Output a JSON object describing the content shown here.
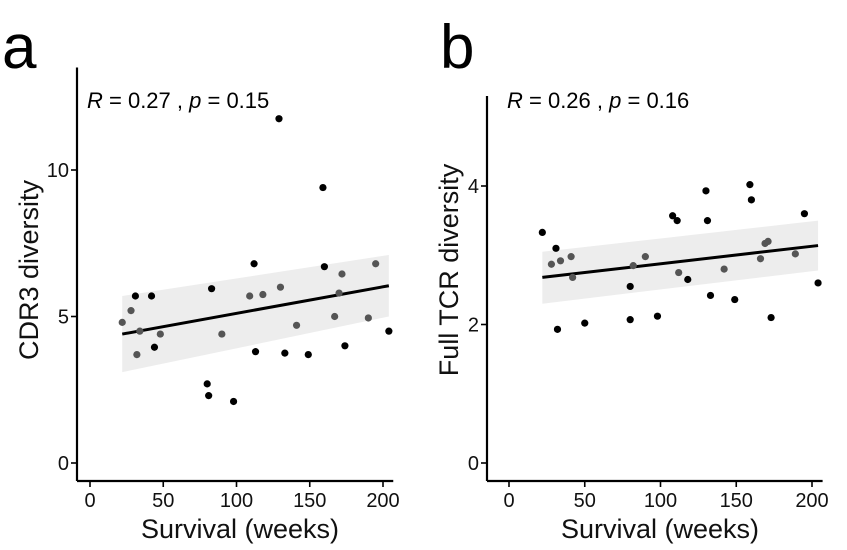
{
  "chart_data": [
    {
      "panel": "a",
      "type": "scatter",
      "stat_text": {
        "r_symbol": "R",
        "r_value": " = 0.27 , ",
        "p_symbol": "p",
        "p_value": " = 0.15"
      },
      "xlabel": "Survival (weeks)",
      "ylabel": "CDR3 diversity",
      "xlim": [
        -8,
        207
      ],
      "ylim": [
        -0.5,
        13.5
      ],
      "xticks": [
        0,
        50,
        100,
        150,
        200
      ],
      "yticks": [
        0,
        5,
        10
      ],
      "grid": false,
      "points": [
        {
          "x": 22,
          "y": 4.8,
          "shade": "light"
        },
        {
          "x": 28,
          "y": 5.2,
          "shade": "light"
        },
        {
          "x": 31,
          "y": 5.7,
          "shade": "dark"
        },
        {
          "x": 32,
          "y": 3.7,
          "shade": "light"
        },
        {
          "x": 34,
          "y": 4.5,
          "shade": "light"
        },
        {
          "x": 42,
          "y": 5.7,
          "shade": "dark"
        },
        {
          "x": 44,
          "y": 3.95,
          "shade": "dark"
        },
        {
          "x": 48,
          "y": 4.4,
          "shade": "light"
        },
        {
          "x": 80,
          "y": 2.7,
          "shade": "dark"
        },
        {
          "x": 81,
          "y": 2.3,
          "shade": "dark"
        },
        {
          "x": 83,
          "y": 5.95,
          "shade": "dark"
        },
        {
          "x": 90,
          "y": 4.4,
          "shade": "light"
        },
        {
          "x": 98,
          "y": 2.1,
          "shade": "dark"
        },
        {
          "x": 109,
          "y": 5.7,
          "shade": "light"
        },
        {
          "x": 112,
          "y": 6.8,
          "shade": "dark"
        },
        {
          "x": 113,
          "y": 3.8,
          "shade": "dark"
        },
        {
          "x": 118,
          "y": 5.75,
          "shade": "light"
        },
        {
          "x": 129,
          "y": 11.75,
          "shade": "dark"
        },
        {
          "x": 130,
          "y": 6.0,
          "shade": "light"
        },
        {
          "x": 133,
          "y": 3.75,
          "shade": "dark"
        },
        {
          "x": 141,
          "y": 4.7,
          "shade": "light"
        },
        {
          "x": 149,
          "y": 3.7,
          "shade": "dark"
        },
        {
          "x": 159,
          "y": 9.4,
          "shade": "dark"
        },
        {
          "x": 160,
          "y": 6.7,
          "shade": "dark"
        },
        {
          "x": 167,
          "y": 5.0,
          "shade": "light"
        },
        {
          "x": 170,
          "y": 5.8,
          "shade": "light"
        },
        {
          "x": 172,
          "y": 6.45,
          "shade": "light"
        },
        {
          "x": 174,
          "y": 4.0,
          "shade": "dark"
        },
        {
          "x": 190,
          "y": 4.95,
          "shade": "light"
        },
        {
          "x": 195,
          "y": 6.8,
          "shade": "light"
        },
        {
          "x": 204,
          "y": 4.5,
          "shade": "dark"
        }
      ],
      "fit_line": {
        "x": [
          22,
          204
        ],
        "y": [
          4.4,
          6.05
        ]
      },
      "ci_band": {
        "x": [
          22,
          204
        ],
        "upper": [
          5.7,
          7.1
        ],
        "lower": [
          3.1,
          5.0
        ]
      }
    },
    {
      "panel": "b",
      "type": "scatter",
      "stat_text": {
        "r_symbol": "R",
        "r_value": " = 0.26 , ",
        "p_symbol": "p",
        "p_value": " = 0.16"
      },
      "xlabel": "Survival (weeks)",
      "ylabel": "Full TCR diversity",
      "xlim": [
        -10,
        207
      ],
      "ylim": [
        -0.08,
        5.3
      ],
      "xticks": [
        0,
        50,
        100,
        150,
        200
      ],
      "yticks": [
        0,
        2,
        4
      ],
      "grid": false,
      "points": [
        {
          "x": 22,
          "y": 3.33,
          "shade": "dark"
        },
        {
          "x": 28,
          "y": 2.87,
          "shade": "light"
        },
        {
          "x": 31,
          "y": 3.1,
          "shade": "dark"
        },
        {
          "x": 32,
          "y": 1.93,
          "shade": "dark"
        },
        {
          "x": 34,
          "y": 2.92,
          "shade": "light"
        },
        {
          "x": 41,
          "y": 2.98,
          "shade": "light"
        },
        {
          "x": 42,
          "y": 2.68,
          "shade": "light"
        },
        {
          "x": 50,
          "y": 2.02,
          "shade": "dark"
        },
        {
          "x": 80,
          "y": 2.55,
          "shade": "dark"
        },
        {
          "x": 80,
          "y": 2.07,
          "shade": "dark"
        },
        {
          "x": 82,
          "y": 2.85,
          "shade": "light"
        },
        {
          "x": 90,
          "y": 2.98,
          "shade": "light"
        },
        {
          "x": 98,
          "y": 2.12,
          "shade": "dark"
        },
        {
          "x": 108,
          "y": 3.57,
          "shade": "dark"
        },
        {
          "x": 111,
          "y": 3.5,
          "shade": "dark"
        },
        {
          "x": 112,
          "y": 2.75,
          "shade": "light"
        },
        {
          "x": 118,
          "y": 2.65,
          "shade": "dark"
        },
        {
          "x": 130,
          "y": 3.93,
          "shade": "dark"
        },
        {
          "x": 131,
          "y": 3.5,
          "shade": "dark"
        },
        {
          "x": 133,
          "y": 2.42,
          "shade": "dark"
        },
        {
          "x": 142,
          "y": 2.8,
          "shade": "light"
        },
        {
          "x": 149,
          "y": 2.36,
          "shade": "dark"
        },
        {
          "x": 159,
          "y": 4.02,
          "shade": "dark"
        },
        {
          "x": 160,
          "y": 3.8,
          "shade": "dark"
        },
        {
          "x": 166,
          "y": 2.95,
          "shade": "light"
        },
        {
          "x": 169,
          "y": 3.17,
          "shade": "light"
        },
        {
          "x": 171,
          "y": 3.2,
          "shade": "light"
        },
        {
          "x": 173,
          "y": 2.1,
          "shade": "dark"
        },
        {
          "x": 189,
          "y": 3.02,
          "shade": "light"
        },
        {
          "x": 195,
          "y": 3.6,
          "shade": "dark"
        },
        {
          "x": 204,
          "y": 2.6,
          "shade": "dark"
        }
      ],
      "fit_line": {
        "x": [
          22,
          204
        ],
        "y": [
          2.68,
          3.14
        ]
      },
      "ci_band": {
        "x": [
          22,
          204
        ],
        "upper": [
          3.05,
          3.5
        ],
        "lower": [
          2.3,
          2.78
        ]
      }
    }
  ],
  "panel_letters": [
    "a",
    "b"
  ],
  "colors": {
    "dark_point": "#000000",
    "light_point": "#555555",
    "line": "#000000",
    "band": "#ededed",
    "axis": "#000000"
  }
}
